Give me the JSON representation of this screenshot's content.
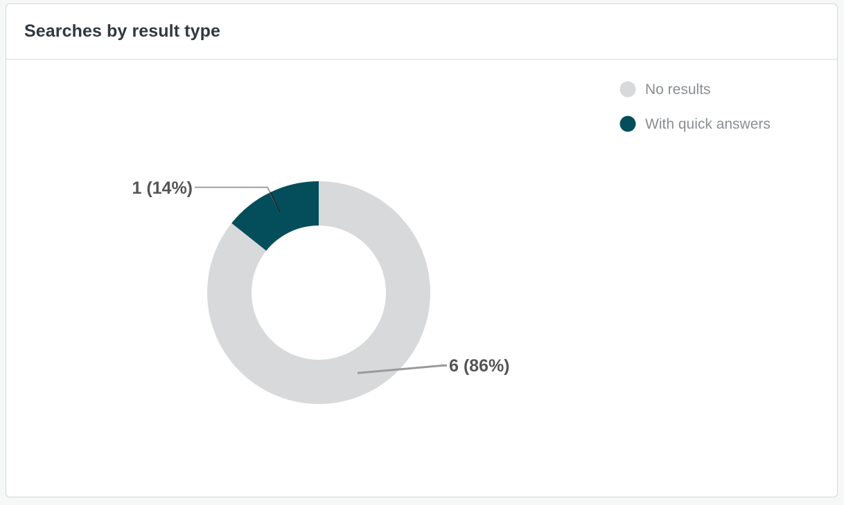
{
  "card": {
    "title": "Searches by result type"
  },
  "chart_data": {
    "type": "pie",
    "donut": true,
    "title": "Searches by result type",
    "legend_position": "top-right",
    "slices": [
      {
        "name": "With quick answers",
        "value": 1,
        "percent": 14,
        "label": "1 (14%)",
        "color": "#044e5c"
      },
      {
        "name": "No results",
        "value": 6,
        "percent": 86,
        "label": "6 (86%)",
        "color": "#d8d9db"
      }
    ],
    "legend": [
      {
        "name": "No results",
        "color": "#d8d9db"
      },
      {
        "name": "With quick answers",
        "color": "#044e5c"
      }
    ]
  }
}
